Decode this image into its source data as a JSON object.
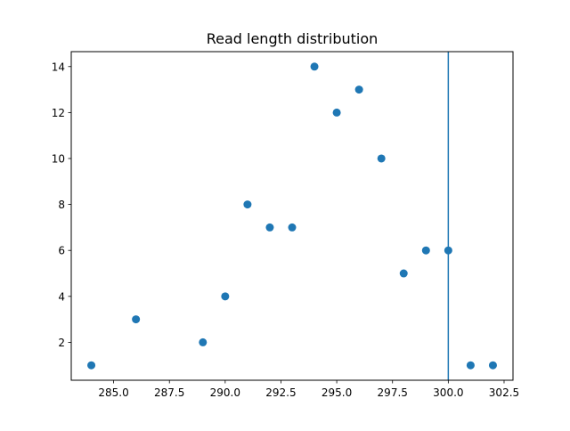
{
  "chart_data": {
    "type": "scatter",
    "title": "Read length distribution",
    "xlabel": "",
    "ylabel": "",
    "xlim": [
      283.1,
      302.9
    ],
    "ylim": [
      0.35,
      14.65
    ],
    "x_ticks": [
      285.0,
      287.5,
      290.0,
      292.5,
      295.0,
      297.5,
      300.0,
      302.5
    ],
    "x_tick_labels": [
      "285.0",
      "287.5",
      "290.0",
      "292.5",
      "295.0",
      "297.5",
      "300.0",
      "302.5"
    ],
    "y_ticks": [
      2,
      4,
      6,
      8,
      10,
      12,
      14
    ],
    "y_tick_labels": [
      "2",
      "4",
      "6",
      "8",
      "10",
      "12",
      "14"
    ],
    "grid": false,
    "legend": "none",
    "series": [
      {
        "color": "#1f77b4",
        "points": [
          {
            "x": 284,
            "y": 1
          },
          {
            "x": 286,
            "y": 3
          },
          {
            "x": 289,
            "y": 2
          },
          {
            "x": 290,
            "y": 4
          },
          {
            "x": 291,
            "y": 8
          },
          {
            "x": 292,
            "y": 7
          },
          {
            "x": 293,
            "y": 7
          },
          {
            "x": 294,
            "y": 14
          },
          {
            "x": 295,
            "y": 12
          },
          {
            "x": 296,
            "y": 13
          },
          {
            "x": 297,
            "y": 10
          },
          {
            "x": 298,
            "y": 5
          },
          {
            "x": 299,
            "y": 6
          },
          {
            "x": 300,
            "y": 6
          },
          {
            "x": 301,
            "y": 1
          },
          {
            "x": 302,
            "y": 1
          }
        ]
      }
    ],
    "vertical_line": {
      "x": 300,
      "color": "#1f77b4"
    }
  }
}
